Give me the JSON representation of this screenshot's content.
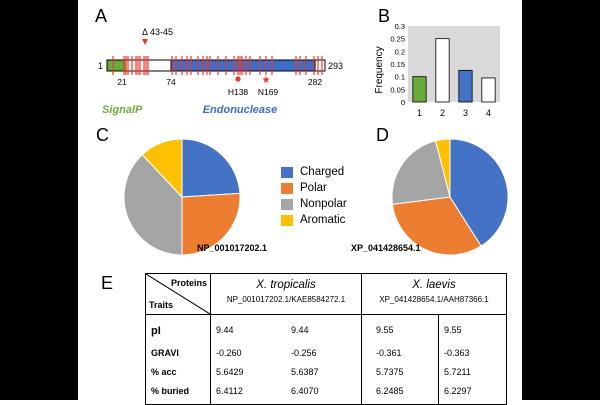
{
  "panels": {
    "a": "A",
    "b": "B",
    "c": "C",
    "d": "D",
    "e": "E"
  },
  "domain_map": {
    "start": "1",
    "end": "293",
    "pos_21": "21",
    "pos_74": "74",
    "pos_282": "282",
    "deletion": "Δ 43-45",
    "h138": "H138",
    "n169": "N169",
    "signalp": "SignalP",
    "endonuclease": "Endonuclease",
    "colors": {
      "signalp": "#6aaa3a",
      "endonuclease": "#3d6ec9",
      "marker": "#e8382c"
    }
  },
  "chart_data": [
    {
      "type": "bar",
      "categories": [
        "1",
        "2",
        "3",
        "4"
      ],
      "values": [
        0.1,
        0.25,
        0.125,
        0.095
      ],
      "bar_colors": [
        "#6aaa3a",
        "#ffffff",
        "#4472c4",
        "#ffffff"
      ],
      "ylabel": "Frequency",
      "yticks": [
        "0",
        "0.05",
        "0.1",
        "0.15",
        "0.2",
        "0.25",
        "0.3"
      ],
      "ylim": [
        0,
        0.3
      ]
    },
    {
      "type": "pie",
      "title": "NP_001017202.1",
      "labels": [
        "Charged",
        "Polar",
        "Nonpolar",
        "Aromatic"
      ],
      "values": [
        24,
        26,
        38,
        12
      ],
      "colors": [
        "#4472c4",
        "#ed7d31",
        "#a5a5a5",
        "#ffc000"
      ]
    },
    {
      "type": "pie",
      "title": "XP_041428654.1",
      "labels": [
        "Charged",
        "Polar",
        "Nonpolar",
        "Aromatic"
      ],
      "values": [
        41,
        32,
        23,
        4
      ],
      "colors": [
        "#4472c4",
        "#ed7d31",
        "#a5a5a5",
        "#ffc000"
      ]
    }
  ],
  "legend": [
    {
      "label": "Charged",
      "color": "#4472c4"
    },
    {
      "label": "Polar",
      "color": "#ed7d31"
    },
    {
      "label": "Nonpolar",
      "color": "#a5a5a5"
    },
    {
      "label": "Aromatic",
      "color": "#ffc000"
    }
  ],
  "table": {
    "proteins_label": "Proteins",
    "traits_label": "Traits",
    "species1": "X. tropicalis",
    "species1_acc": "NP_001017202.1/KAE8584272.1",
    "species2": "X. laevis",
    "species2_acc": "XP_041428654.1/AAH87366.1",
    "rows": [
      {
        "trait": "pI",
        "v1": "9.44",
        "v2": "9.44",
        "v3": "9.55",
        "v4": "9.55"
      },
      {
        "trait": "GRAVI",
        "v1": "-0.260",
        "v2": "-0.256",
        "v3": "-0.361",
        "v4": "-0.363"
      },
      {
        "trait": "% acc",
        "v1": "5.6429",
        "v2": "5.6387",
        "v3": "5.7375",
        "v4": "5.7211"
      },
      {
        "trait": "% buried",
        "v1": "6.4112",
        "v2": "6.4070",
        "v3": "6.2485",
        "v4": "6.2297"
      }
    ]
  }
}
